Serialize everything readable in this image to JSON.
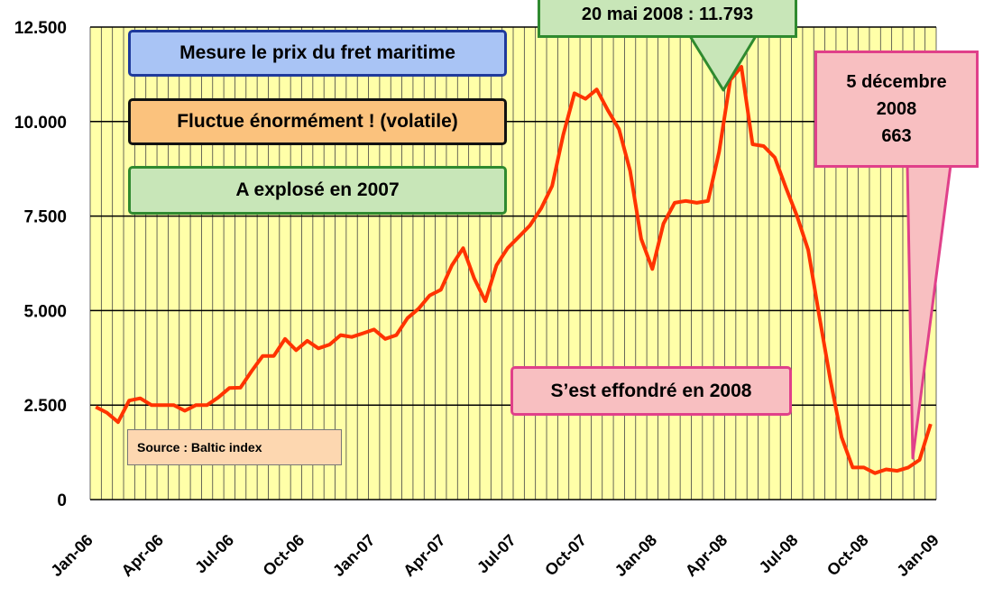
{
  "chart_data": {
    "type": "line",
    "y_tick_labels": [
      "0",
      "2.500",
      "5.000",
      "7.500",
      "10.000",
      "12.500"
    ],
    "x_tick_labels": [
      "Jan-06",
      "Apr-06",
      "Jul-06",
      "Oct-06",
      "Jan-07",
      "Apr-07",
      "Jul-07",
      "Oct-07",
      "Jan-08",
      "Apr-08",
      "Jul-08",
      "Oct-08",
      "Jan-09"
    ],
    "ylim": [
      0,
      12500
    ],
    "grid": true,
    "series_color": "#ff3300",
    "plot_background": "#ffffa8",
    "values": [
      2450,
      2300,
      2050,
      2620,
      2680,
      2500,
      2500,
      2500,
      2350,
      2500,
      2500,
      2700,
      2950,
      2960,
      3400,
      3800,
      3800,
      4250,
      3950,
      4200,
      4000,
      4100,
      4350,
      4300,
      4400,
      4500,
      4250,
      4350,
      4800,
      5050,
      5400,
      5550,
      6200,
      6650,
      5850,
      5250,
      6200,
      6650,
      6950,
      7250,
      7700,
      8300,
      9650,
      10750,
      10600,
      10850,
      10300,
      9800,
      8700,
      6900,
      6100,
      7300,
      7850,
      7900,
      7850,
      7900,
      9200,
      11100,
      11450,
      9400,
      9350,
      9050,
      8250,
      7500,
      6600,
      4850,
      3150,
      1650,
      850,
      850,
      700,
      800,
      760,
      850,
      1050,
      2000
    ]
  },
  "annotations": {
    "mesure": "Mesure le prix du fret maritime",
    "fluctue": "Fluctue énormément ! (volatile)",
    "explose": "A explosé en 2007",
    "effondre": "S’est effondré en 2008",
    "source": "Source : Baltic index",
    "may_peak": "20 mai 2008 : 11.793",
    "dec_low_line1": "5 décembre",
    "dec_low_line2": "2008",
    "dec_low_line3": "663"
  }
}
